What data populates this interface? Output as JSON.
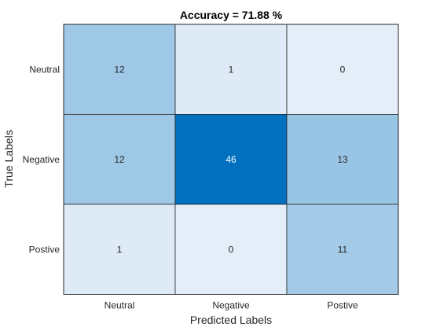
{
  "chart_data": {
    "type": "heatmap",
    "title": "Accuracy = 71.88 %",
    "xlabel": "Predicted Labels",
    "ylabel": "True Labels",
    "x_categories": [
      "Neutral",
      "Negative",
      "Postive"
    ],
    "y_categories": [
      "Neutral",
      "Negative",
      "Postive"
    ],
    "values": [
      [
        12,
        1,
        0
      ],
      [
        12,
        46,
        13
      ],
      [
        1,
        0,
        11
      ]
    ],
    "grid": true,
    "colors": {
      "low": "#e4eef8",
      "mid": "#abcfe9",
      "high": "#0070bf",
      "text_dark": "#262626",
      "text_light": "#ffffff"
    }
  }
}
